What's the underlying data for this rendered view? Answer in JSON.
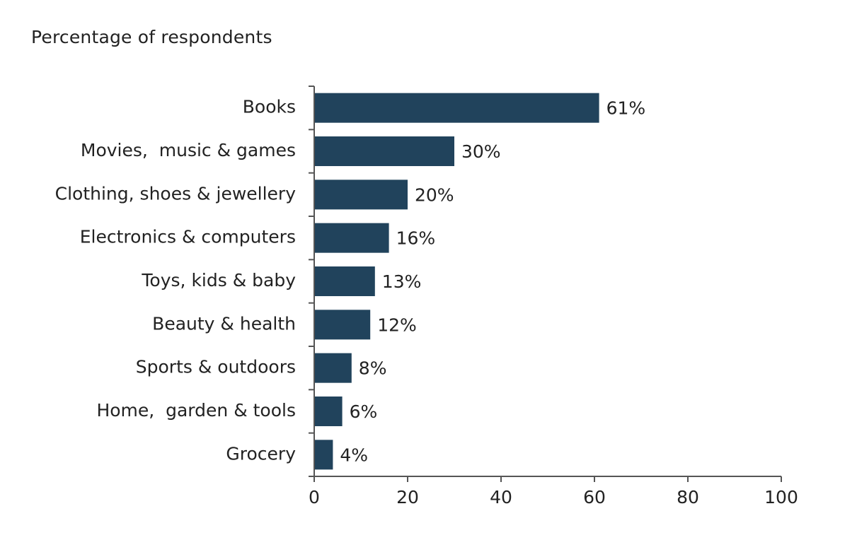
{
  "chart_data": {
    "type": "bar",
    "orientation": "horizontal",
    "title": "Percentage of respondents",
    "categories": [
      "Books",
      "Movies,  music & games",
      "Clothing, shoes & jewellery",
      "Electronics & computers",
      "Toys, kids & baby",
      "Beauty & health",
      "Sports & outdoors",
      "Home,  garden & tools",
      "Grocery"
    ],
    "values": [
      61,
      30,
      20,
      16,
      13,
      12,
      8,
      6,
      4
    ],
    "data_labels": [
      "61%",
      "30%",
      "20%",
      "16%",
      "13%",
      "12%",
      "8%",
      "6%",
      "4%"
    ],
    "xlim": [
      0,
      100
    ],
    "xticks": [
      0,
      20,
      40,
      60,
      80,
      100
    ],
    "xlabel": "",
    "ylabel": "",
    "grid": false,
    "legend": "none",
    "bar_color": "#21435c",
    "axis_color": "#555555"
  }
}
